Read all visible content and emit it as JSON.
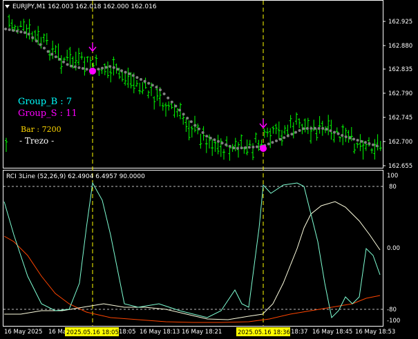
{
  "main_panel": {
    "symbol_header": "EURJPY,M1  162.003 162.018 162.000 162.016",
    "price_labels": [
      "162.925",
      "162.880",
      "162.835",
      "162.790",
      "162.745",
      "162.700",
      "162.655"
    ],
    "overlay": {
      "group_b": "Group_B : 7",
      "group_s": "Group_S : 11",
      "bar": "Bar : 7200",
      "name": "- Trezo -"
    }
  },
  "indicator_panel": {
    "header": "RCI 3Line (52,26,9) 62.4904 6.4957 90.0000",
    "levels": [
      "100",
      "80",
      "0.00",
      "-80",
      "-100"
    ]
  },
  "time_axis": {
    "labels": [
      "16 May 2025",
      "16 Ma",
      "18:05",
      "16 May 18:13",
      "16 May 18:21",
      "18:37",
      "16 May 18:45",
      "16 May 18:53"
    ],
    "highlights": [
      "2025.05.16 18:05",
      "2025.05.16 18:36"
    ]
  },
  "colors": {
    "background": "#000000",
    "grid": "#ffffff",
    "bars": "#00ff00",
    "ma_dots": "#808080",
    "signal": "#ff00ff",
    "crosshair": "#ffff00",
    "group_b": "#00ffff",
    "group_s": "#ff00ff",
    "bar_text": "#ffd700",
    "rci_fast": "#7fffd4",
    "rci_mid": "#ffffe0",
    "rci_slow": "#ff4500",
    "level_line": "#c0c0c0"
  },
  "icons": [
    "dropdown-triangle-icon",
    "down-arrow-signal-icon"
  ]
}
